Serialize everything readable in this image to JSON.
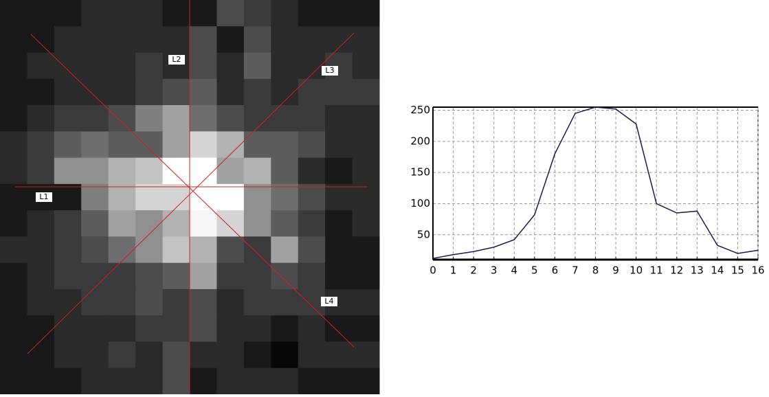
{
  "image": {
    "labels": [
      "L1",
      "L2",
      "L3",
      "L4"
    ]
  },
  "chart_data": {
    "type": "line",
    "x": [
      0,
      1,
      2,
      3,
      4,
      5,
      6,
      7,
      8,
      9,
      10,
      11,
      12,
      13,
      14,
      15,
      16
    ],
    "series": [
      {
        "color": "#1a1a50",
        "values": [
          12,
          18,
          23,
          30,
          42,
          82,
          180,
          245,
          255,
          252,
          228,
          100,
          85,
          88,
          33,
          20,
          25
        ]
      }
    ],
    "xlim": [
      0,
      16
    ],
    "xticks": [
      0,
      1,
      2,
      3,
      4,
      5,
      6,
      7,
      8,
      9,
      10,
      11,
      12,
      13,
      14,
      15,
      16
    ],
    "ylim": [
      10,
      255
    ],
    "yticks": [
      50,
      100,
      150,
      200,
      250
    ],
    "grid": true
  }
}
